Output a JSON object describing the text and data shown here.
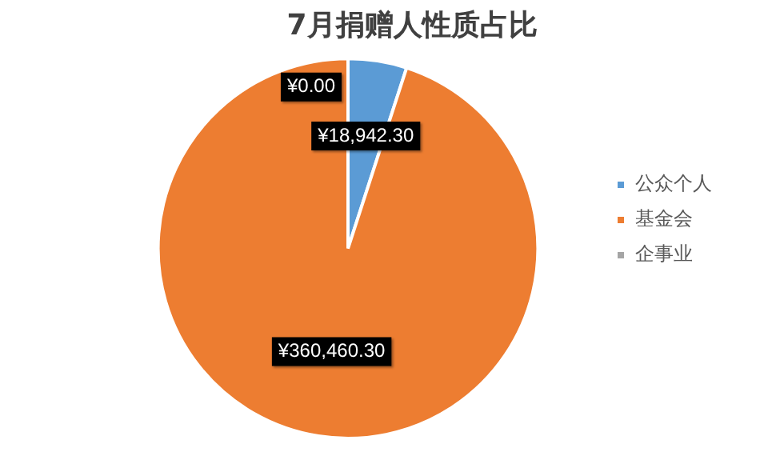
{
  "chart_data": {
    "type": "pie",
    "title": "7月捐赠人性质占比",
    "categories": [
      "公众个人",
      "基金会",
      "企事业"
    ],
    "values": [
      18942.3,
      360460.3,
      0.0
    ],
    "value_labels": [
      "¥18,942.30",
      "¥360,460.30",
      "¥0.00"
    ],
    "colors": [
      "#5b9bd5",
      "#ed7d31",
      "#a5a5a5"
    ],
    "legend": "right"
  }
}
